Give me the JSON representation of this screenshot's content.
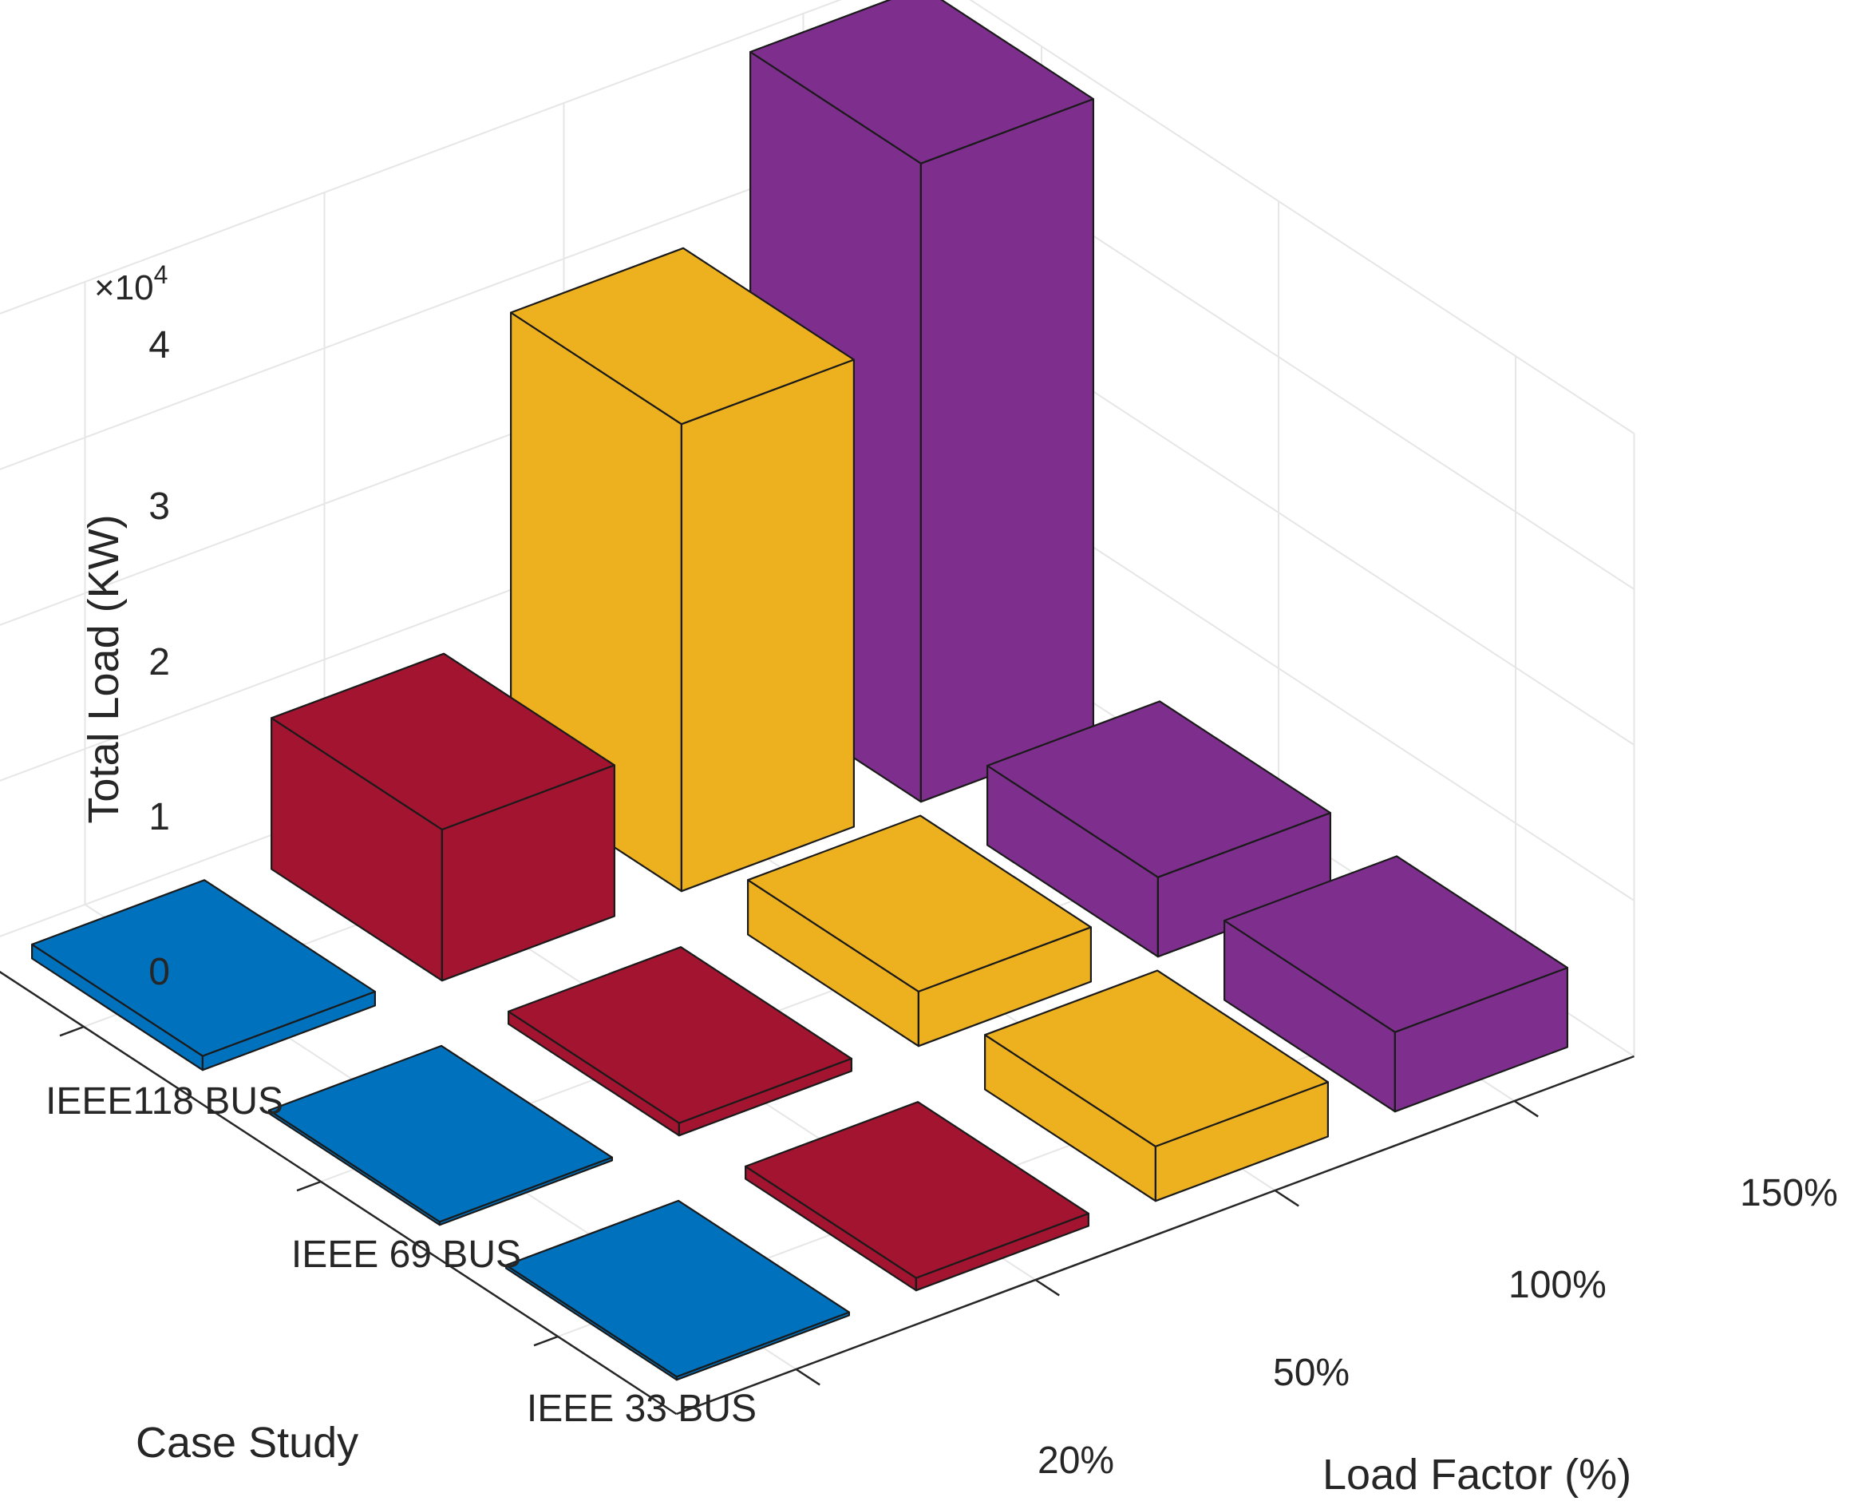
{
  "chart_data": {
    "type": "bar3d",
    "title": "",
    "zlabel": "Total Load (KW)",
    "zscale_label": "×10",
    "zscale_exponent": "4",
    "xlabel": "Case Study",
    "ylabel": "Load Factor (%)",
    "zlim": [
      0,
      40000
    ],
    "z_ticks": [
      0,
      10000,
      20000,
      30000,
      40000
    ],
    "z_tick_labels": [
      "0",
      "1",
      "2",
      "3",
      "4"
    ],
    "case_studies": [
      "IEEE118 BUS",
      "IEEE 69 BUS",
      "IEEE 33 BUS"
    ],
    "load_factors": [
      "20%",
      "50%",
      "100%",
      "150%"
    ],
    "series": [
      {
        "name": "20%",
        "color": "#0072bd",
        "values": [
          900,
          200,
          200
        ]
      },
      {
        "name": "50%",
        "color": "#a2142f",
        "values": [
          9700,
          800,
          800
        ]
      },
      {
        "name": "100%",
        "color": "#edb120",
        "values": [
          30000,
          3500,
          3500
        ]
      },
      {
        "name": "150%",
        "color": "#7e2f8e",
        "values": [
          41000,
          5100,
          5100
        ]
      }
    ],
    "grid": true
  }
}
